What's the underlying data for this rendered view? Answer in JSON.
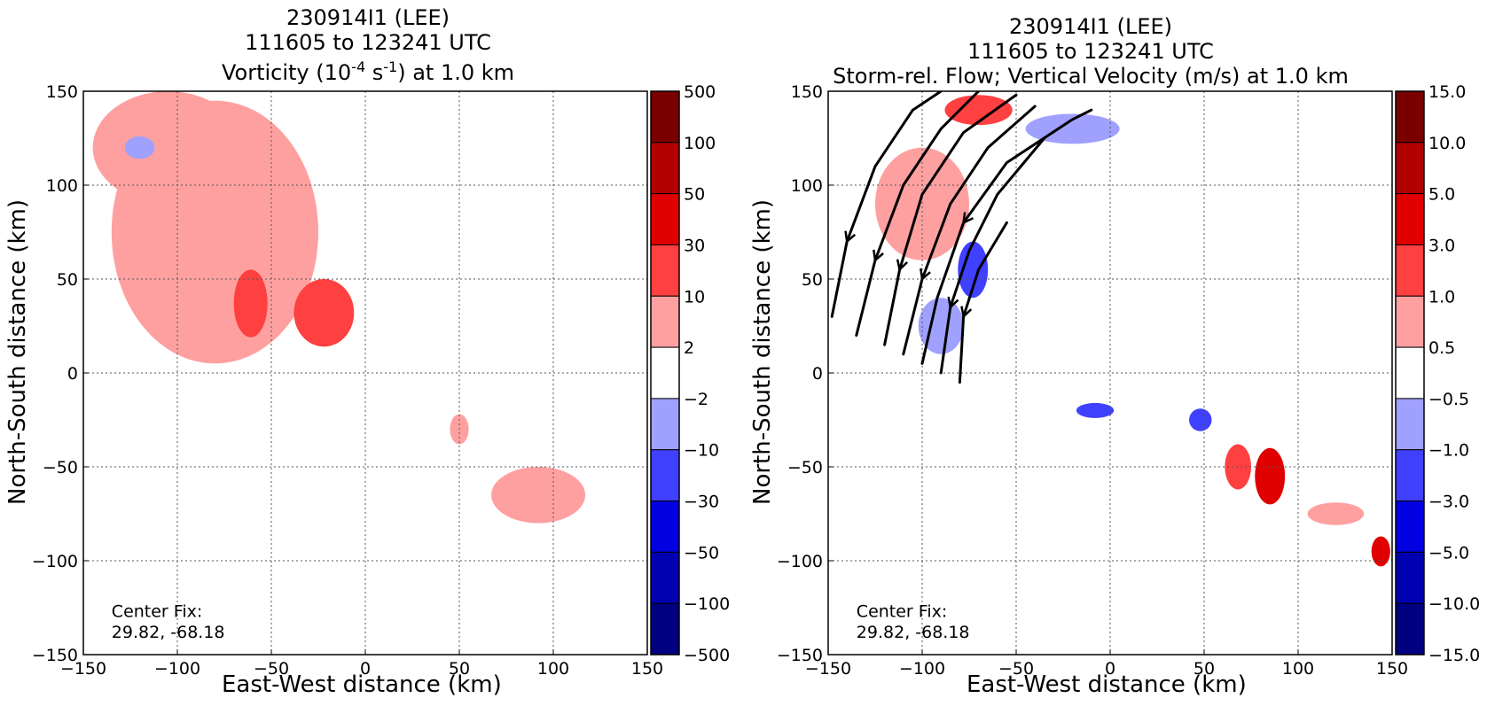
{
  "chart_data": [
    {
      "type": "heatmap",
      "title_lines": [
        "230914I1 (LEE)",
        "111605 to 123241 UTC"
      ],
      "title_main": "Vorticity (10",
      "title_exp1": "-4",
      "title_mid": " s",
      "title_exp2": "-1",
      "title_end": ") at 1.0 km",
      "xlabel": "East-West distance (km)",
      "ylabel": "North-South distance (km)",
      "xlim": [
        -150,
        150
      ],
      "ylim": [
        -150,
        150
      ],
      "xticks": [
        "−150",
        "−100",
        "−50",
        "0",
        "50",
        "100",
        "150"
      ],
      "yticks": [
        "150",
        "100",
        "50",
        "0",
        "−50",
        "−100",
        "−150"
      ],
      "grid": true,
      "colorbar_labels": [
        "500",
        "100",
        "50",
        "30",
        "10",
        "2",
        "−2",
        "−10",
        "−30",
        "−50",
        "−100",
        "−500"
      ],
      "colorbar_colors": [
        "#7a0000",
        "#b30000",
        "#e00000",
        "#ff4040",
        "#ffa0a0",
        "#ffffff",
        "#a0a0ff",
        "#4040ff",
        "#0000e0",
        "#0000b0",
        "#000080"
      ],
      "annotation_line1": "Center Fix:",
      "annotation_line2": "29.82, -68.18",
      "regions": [
        {
          "level": "2 to 10",
          "x": -80,
          "y": 75,
          "rx": 55,
          "ry": 70
        },
        {
          "level": "2 to 10",
          "x": -105,
          "y": 120,
          "rx": 40,
          "ry": 30
        },
        {
          "level": "10 to 30",
          "x": -61,
          "y": 37,
          "rx": 9,
          "ry": 18
        },
        {
          "level": "10 to 30",
          "x": -22,
          "y": 32,
          "rx": 16,
          "ry": 18
        },
        {
          "level": "2 to 10",
          "x": 92,
          "y": -65,
          "rx": 25,
          "ry": 15
        },
        {
          "level": "2 to 10",
          "x": 50,
          "y": -30,
          "rx": 5,
          "ry": 8
        },
        {
          "level": "-2 to -10",
          "x": -120,
          "y": 120,
          "rx": 8,
          "ry": 6
        }
      ]
    },
    {
      "type": "heatmap",
      "title_lines": [
        "230914I1 (LEE)",
        "111605 to 123241 UTC"
      ],
      "title_main": "Storm-rel. Flow; Vertical Velocity (m/s) at 1.0 km",
      "xlabel": "East-West distance (km)",
      "ylabel": "North-South distance (km)",
      "xlim": [
        -150,
        150
      ],
      "ylim": [
        -150,
        150
      ],
      "xticks": [
        "−150",
        "−100",
        "−50",
        "0",
        "50",
        "100",
        "150"
      ],
      "yticks": [
        "150",
        "100",
        "50",
        "0",
        "−50",
        "−100",
        "−150"
      ],
      "grid": true,
      "colorbar_labels": [
        "15.0",
        "10.0",
        "5.0",
        "3.0",
        "1.0",
        "0.5",
        "−0.5",
        "−1.0",
        "−3.0",
        "−5.0",
        "−10.0",
        "−15.0"
      ],
      "colorbar_colors": [
        "#7a0000",
        "#b30000",
        "#e00000",
        "#ff4040",
        "#ffa0a0",
        "#ffffff",
        "#a0a0ff",
        "#4040ff",
        "#0000e0",
        "#0000b0",
        "#000080"
      ],
      "annotation_line1": "Center Fix:",
      "annotation_line2": "29.82, -68.18",
      "regions": [
        {
          "level": "-1.0 to -3.0",
          "x": -73,
          "y": 55,
          "rx": 8,
          "ry": 15
        },
        {
          "level": "-0.5 to -1.0",
          "x": -90,
          "y": 25,
          "rx": 12,
          "ry": 15
        },
        {
          "level": "0.5 to 1.0",
          "x": -100,
          "y": 90,
          "rx": 25,
          "ry": 30
        },
        {
          "level": "1.0 to 3.0",
          "x": -70,
          "y": 140,
          "rx": 18,
          "ry": 8
        },
        {
          "level": "-0.5 to -1.0",
          "x": -20,
          "y": 130,
          "rx": 25,
          "ry": 8
        },
        {
          "level": "1.0 to 3.0",
          "x": 68,
          "y": -50,
          "rx": 7,
          "ry": 12
        },
        {
          "level": "3.0 to 5.0",
          "x": 85,
          "y": -55,
          "rx": 8,
          "ry": 15
        },
        {
          "level": "-1.0 to -3.0",
          "x": 48,
          "y": -25,
          "rx": 6,
          "ry": 6
        },
        {
          "level": "-1.0 to -3.0",
          "x": -8,
          "y": -20,
          "rx": 10,
          "ry": 4
        },
        {
          "level": "0.5 to 1.0",
          "x": 120,
          "y": -75,
          "rx": 15,
          "ry": 6
        },
        {
          "level": "3.0 to 5.0",
          "x": 144,
          "y": -95,
          "rx": 5,
          "ry": 8
        }
      ],
      "streamlines": [
        [
          [
            -148,
            30
          ],
          [
            -140,
            70
          ],
          [
            -125,
            110
          ],
          [
            -105,
            140
          ],
          [
            -90,
            150
          ]
        ],
        [
          [
            -135,
            20
          ],
          [
            -125,
            60
          ],
          [
            -110,
            100
          ],
          [
            -90,
            130
          ],
          [
            -70,
            150
          ]
        ],
        [
          [
            -120,
            15
          ],
          [
            -112,
            55
          ],
          [
            -100,
            95
          ],
          [
            -78,
            128
          ],
          [
            -50,
            148
          ]
        ],
        [
          [
            -110,
            10
          ],
          [
            -100,
            50
          ],
          [
            -85,
            90
          ],
          [
            -65,
            120
          ],
          [
            -40,
            142
          ]
        ],
        [
          [
            -100,
            5
          ],
          [
            -92,
            40
          ],
          [
            -78,
            80
          ],
          [
            -55,
            112
          ],
          [
            -20,
            135
          ],
          [
            -10,
            140
          ]
        ],
        [
          [
            -90,
            0
          ],
          [
            -85,
            35
          ],
          [
            -75,
            65
          ],
          [
            -60,
            95
          ],
          [
            -35,
            125
          ]
        ],
        [
          [
            -80,
            -5
          ],
          [
            -78,
            30
          ],
          [
            -70,
            55
          ],
          [
            -55,
            80
          ]
        ]
      ]
    }
  ]
}
